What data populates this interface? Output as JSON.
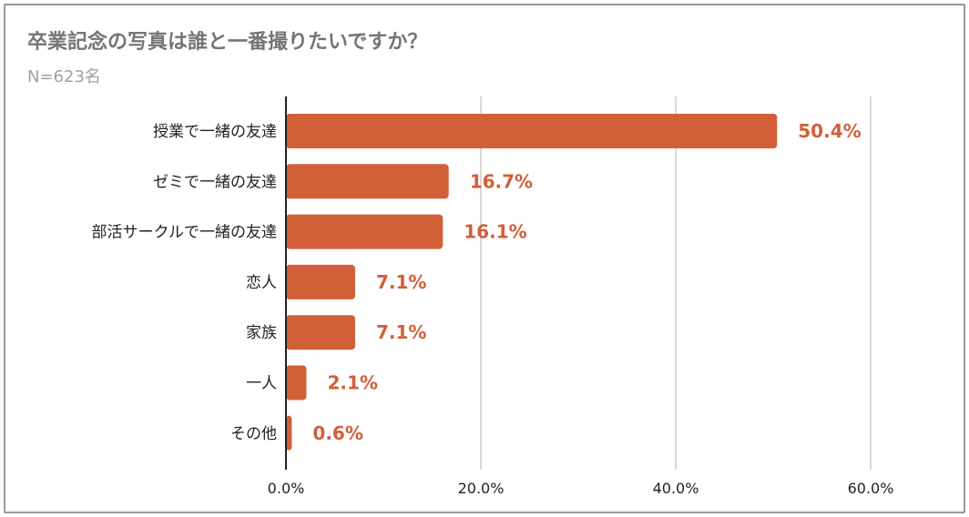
{
  "header": {
    "title": "卒業記念の写真は誰と一番撮りたいですか？",
    "subtitle": "N=623名"
  },
  "colors": {
    "bar": "#d15f38",
    "value_label": "#d15f38",
    "grid": "#cccccc",
    "axis": "#222222"
  },
  "chart_data": {
    "type": "bar",
    "orientation": "horizontal",
    "title": "卒業記念の写真は誰と一番撮りたいですか？",
    "subtitle": "N=623名",
    "categories": [
      "授業で一緒の友達",
      "ゼミで一緒の友達",
      "部活サークルで一緒の友達",
      "恋人",
      "家族",
      "一人",
      "その他"
    ],
    "values": [
      50.4,
      16.7,
      16.1,
      7.1,
      7.1,
      2.1,
      0.6
    ],
    "value_labels": [
      "50.4%",
      "16.7%",
      "16.1%",
      "7.1%",
      "7.1%",
      "2.1%",
      "0.6%"
    ],
    "xlim": [
      0,
      60
    ],
    "xticks": [
      0,
      20,
      40,
      60
    ],
    "xtick_labels": [
      "0.0%",
      "20.0%",
      "40.0%",
      "60.0%"
    ],
    "grid": true,
    "legend": "none"
  }
}
